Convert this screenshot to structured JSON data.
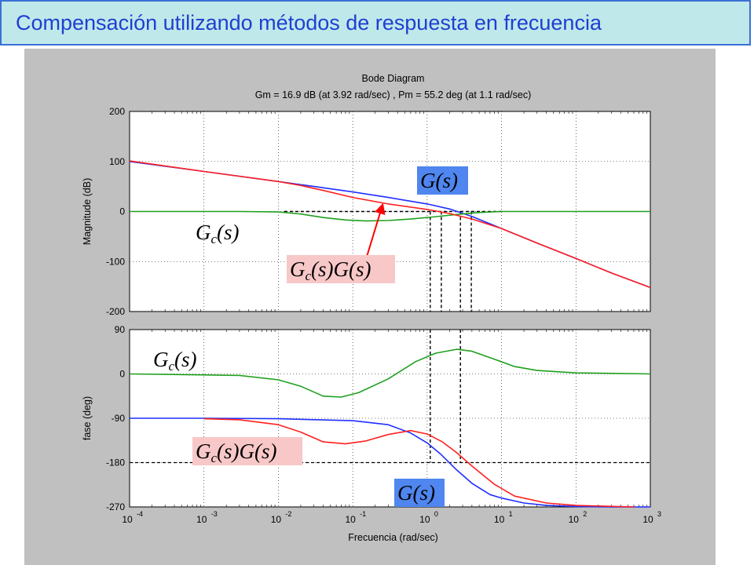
{
  "slide": {
    "title": "Compensación utilizando métodos de respuesta en frecuencia"
  },
  "colors": {
    "title_text": "#1f3fd1",
    "title_bg": "#bfe8ea",
    "title_border": "#3b6fd6",
    "figure_bg": "#c0c0c0",
    "G": "#1f2fff",
    "Gc": "#1fa01f",
    "GcG": "#ff2020",
    "label_G_bg": "#4f86ef",
    "label_GcG_bg": "#f8c8c8",
    "arrow": "#ff0000"
  },
  "chart_data": {
    "type": "line",
    "title": "Bode Diagram",
    "subtitle": "Gm = 16.9 dB (at 3.92 rad/sec) ,  Pm = 55.2 deg (at 1.1 rad/sec)",
    "xlabel": "Frecuencia  (rad/sec)",
    "xscale": "log",
    "xlim": [
      0.0001,
      1000
    ],
    "x_ticks": [
      "10",
      "10",
      "10",
      "10",
      "10",
      "10",
      "10",
      "10"
    ],
    "x_tick_exponents": [
      "-4",
      "-3",
      "-2",
      "-1",
      "0",
      "1",
      "2",
      "3"
    ],
    "grid": true,
    "magnitude": {
      "ylabel": "Magnitude (dB)",
      "ylim": [
        -200,
        200
      ],
      "y_ticks": [
        "200",
        "100",
        "0",
        "-100",
        "-200"
      ],
      "series": [
        {
          "key": "G",
          "x": [
            0.0001,
            0.001,
            0.01,
            0.03,
            0.1,
            0.3,
            1,
            2,
            4,
            10,
            30,
            100,
            300,
            1000
          ],
          "values": [
            100,
            80,
            60,
            50,
            39,
            28,
            15,
            5,
            -10,
            -34,
            -63,
            -94,
            -123,
            -152
          ]
        },
        {
          "key": "Gc",
          "x": [
            0.0001,
            0.003,
            0.01,
            0.02,
            0.04,
            0.08,
            0.15,
            0.3,
            0.6,
            1.2,
            2.5,
            5,
            10,
            1000
          ],
          "values": [
            0,
            0,
            -1,
            -5,
            -12,
            -17,
            -19,
            -18,
            -15,
            -11,
            -6,
            -2,
            0,
            0
          ]
        },
        {
          "key": "GcG",
          "x": [
            0.0001,
            0.001,
            0.01,
            0.02,
            0.04,
            0.1,
            0.3,
            1,
            2,
            4,
            10,
            30,
            100,
            300,
            1000
          ],
          "values": [
            101,
            80,
            60,
            52,
            42,
            28,
            15,
            4,
            -4,
            -15,
            -34,
            -63,
            -94,
            -123,
            -152
          ]
        }
      ]
    },
    "phase": {
      "ylabel": "fase (deg)",
      "ylim": [
        -270,
        90
      ],
      "y_ticks": [
        "90",
        "0",
        "-90",
        "-180",
        "-270"
      ],
      "series": [
        {
          "key": "G",
          "x": [
            0.0001,
            0.001,
            0.01,
            0.1,
            0.3,
            0.6,
            1,
            1.5,
            2.5,
            4,
            7,
            10,
            20,
            40,
            100,
            300,
            1000
          ],
          "values": [
            -90,
            -90,
            -91,
            -95,
            -103,
            -120,
            -140,
            -162,
            -195,
            -222,
            -245,
            -252,
            -262,
            -267,
            -269,
            -270,
            -270
          ]
        },
        {
          "key": "Gc",
          "x": [
            0.0001,
            0.003,
            0.01,
            0.02,
            0.04,
            0.07,
            0.12,
            0.3,
            0.7,
            1.3,
            2.5,
            4,
            8,
            15,
            30,
            100,
            1000
          ],
          "values": [
            0,
            -3,
            -12,
            -25,
            -45,
            -47,
            -38,
            -10,
            25,
            42,
            50,
            46,
            30,
            15,
            7,
            2,
            0
          ]
        },
        {
          "key": "GcG",
          "x": [
            0.001,
            0.003,
            0.01,
            0.02,
            0.04,
            0.08,
            0.15,
            0.3,
            0.6,
            1,
            1.6,
            2.5,
            4,
            8,
            15,
            40,
            100,
            600
          ],
          "values": [
            -91,
            -93,
            -103,
            -118,
            -138,
            -142,
            -136,
            -123,
            -115,
            -122,
            -138,
            -160,
            -187,
            -224,
            -248,
            -262,
            -267,
            -270
          ]
        }
      ]
    },
    "reference_lines": {
      "magnitude_db": 0,
      "phase_deg": -180
    },
    "vertical_markers": [
      {
        "x": 1.1,
        "from_mag_db": 0,
        "to_phase_deg": -180
      },
      {
        "x": 1.55,
        "from_mag_db": 0,
        "to_phase_deg": 90
      },
      {
        "x": 2.8,
        "from_mag_db": 0,
        "to_phase_deg": -180
      },
      {
        "x": 3.92,
        "from_mag_db": 0,
        "to_phase_deg": 90
      }
    ],
    "annotations": [
      {
        "key": "ann_G_mag",
        "panel": "magnitude",
        "base": "G",
        "sub": "",
        "rest": "",
        "bg": "label_G_bg"
      },
      {
        "key": "ann_Gc_mag",
        "panel": "magnitude",
        "base": "G",
        "sub": "c",
        "rest": "",
        "bg": ""
      },
      {
        "key": "ann_GcG_mag",
        "panel": "magnitude",
        "base": "G",
        "sub": "c",
        "rest": "G(s)",
        "bg": "label_GcG_bg"
      },
      {
        "key": "ann_Gc_ph",
        "panel": "phase",
        "base": "G",
        "sub": "c",
        "rest": "",
        "bg": ""
      },
      {
        "key": "ann_GcG_ph",
        "panel": "phase",
        "base": "G",
        "sub": "c",
        "rest": "G(s)",
        "bg": "label_GcG_bg"
      },
      {
        "key": "ann_G_ph",
        "panel": "phase",
        "base": "G",
        "sub": "",
        "rest": "",
        "bg": "label_G_bg"
      }
    ],
    "math_parts": {
      "open": "(s)"
    }
  }
}
